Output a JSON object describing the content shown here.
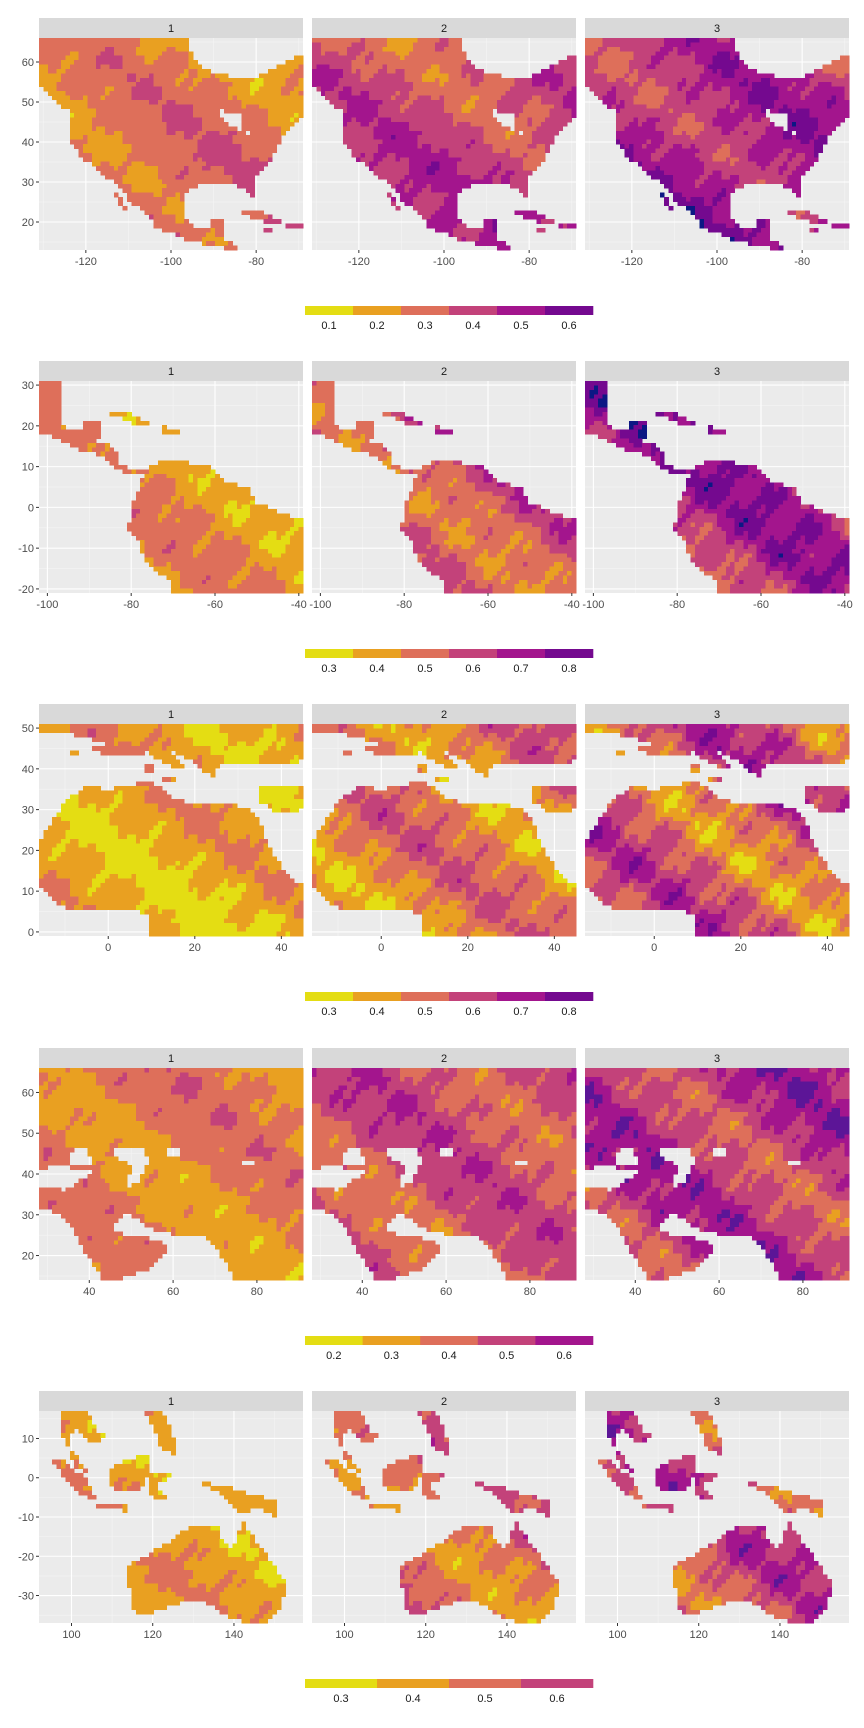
{
  "chart_data": [
    {
      "type": "heatmap",
      "region": "north-america",
      "panels": [
        "1",
        "2",
        "3"
      ],
      "xlim": [
        -131,
        -69
      ],
      "ylim": [
        13,
        66
      ],
      "x_ticks": [
        -120,
        -100,
        -80
      ],
      "y_ticks": [
        20,
        30,
        40,
        50,
        60
      ],
      "x_tick_labels": [
        "-120",
        "-100",
        "-80"
      ],
      "y_tick_labels": [
        "20",
        "30",
        "40",
        "50",
        "60"
      ],
      "legend": {
        "breaks": [
          0.05,
          0.15,
          0.25,
          0.35,
          0.45,
          0.55,
          0.65
        ],
        "labels": [
          "0.1",
          "0.2",
          "0.3",
          "0.4",
          "0.5",
          "0.6"
        ],
        "label_values": [
          0.1,
          0.2,
          0.3,
          0.4,
          0.5,
          0.6
        ],
        "colors": [
          "#e4dd13",
          "#e9a021",
          "#de6f5a",
          "#c3427a",
          "#a3158d",
          "#74098f",
          "#0c1784"
        ]
      },
      "panel_levels": [
        2.0,
        3.0,
        3.8
      ],
      "panel_spread": [
        1.0,
        1.1,
        1.3
      ]
    },
    {
      "type": "heatmap",
      "region": "south-america",
      "panels": [
        "1",
        "2",
        "3"
      ],
      "xlim": [
        -102,
        -39
      ],
      "ylim": [
        -21,
        31
      ],
      "x_ticks": [
        -100,
        -80,
        -60,
        -40
      ],
      "y_ticks": [
        -20,
        -10,
        0,
        10,
        20,
        30
      ],
      "x_tick_labels": [
        "-100",
        "-80",
        "-60",
        "-40"
      ],
      "y_tick_labels": [
        "-20",
        "-10",
        "0",
        "10",
        "20",
        "30"
      ],
      "legend": {
        "breaks": [
          0.25,
          0.35,
          0.45,
          0.55,
          0.65,
          0.75,
          0.85
        ],
        "labels": [
          "0.3",
          "0.4",
          "0.5",
          "0.6",
          "0.7",
          "0.8"
        ],
        "label_values": [
          0.3,
          0.4,
          0.5,
          0.6,
          0.7,
          0.8
        ],
        "colors": [
          "#e4dd13",
          "#e9a021",
          "#de6f5a",
          "#c3427a",
          "#a3158d",
          "#74098f",
          "#0c1784"
        ]
      },
      "panel_levels": [
        1.4,
        2.6,
        3.6
      ],
      "panel_spread": [
        1.0,
        1.3,
        1.6
      ]
    },
    {
      "type": "heatmap",
      "region": "africa-mediterranean",
      "panels": [
        "1",
        "2",
        "3"
      ],
      "xlim": [
        -16,
        45
      ],
      "ylim": [
        -1,
        51
      ],
      "x_ticks": [
        0,
        20,
        40
      ],
      "y_ticks": [
        0,
        10,
        20,
        30,
        40,
        50
      ],
      "x_tick_labels": [
        "0",
        "20",
        "40"
      ],
      "y_tick_labels": [
        "0",
        "10",
        "20",
        "30",
        "40",
        "50"
      ],
      "legend": {
        "breaks": [
          0.25,
          0.35,
          0.45,
          0.55,
          0.65,
          0.75,
          0.85
        ],
        "labels": [
          "0.3",
          "0.4",
          "0.5",
          "0.6",
          "0.7",
          "0.8"
        ],
        "label_values": [
          0.3,
          0.4,
          0.5,
          0.6,
          0.7,
          0.8
        ],
        "colors": [
          "#e4dd13",
          "#e9a021",
          "#de6f5a",
          "#c3427a",
          "#a3158d",
          "#74098f",
          "#0c1784"
        ]
      },
      "panel_levels": [
        0.9,
        1.7,
        2.4
      ],
      "panel_spread": [
        1.1,
        1.4,
        1.9
      ]
    },
    {
      "type": "heatmap",
      "region": "asia",
      "panels": [
        "1",
        "2",
        "3"
      ],
      "xlim": [
        28,
        91
      ],
      "ylim": [
        14,
        66
      ],
      "x_ticks": [
        40,
        60,
        80
      ],
      "y_ticks": [
        20,
        30,
        40,
        50,
        60
      ],
      "x_tick_labels": [
        "40",
        "60",
        "80"
      ],
      "y_tick_labels": [
        "20",
        "30",
        "40",
        "50",
        "60"
      ],
      "legend": {
        "breaks": [
          0.15,
          0.25,
          0.35,
          0.45,
          0.55,
          0.65
        ],
        "labels": [
          "0.2",
          "0.3",
          "0.4",
          "0.5",
          "0.6"
        ],
        "label_values": [
          0.2,
          0.3,
          0.4,
          0.5,
          0.6
        ],
        "colors": [
          "#e4dd13",
          "#e9a021",
          "#de6f5a",
          "#c3427a",
          "#a3158d",
          "#5c1597"
        ]
      },
      "panel_levels": [
        1.6,
        2.6,
        3.2
      ],
      "panel_spread": [
        0.9,
        1.1,
        1.4
      ]
    },
    {
      "type": "heatmap",
      "region": "australasia",
      "panels": [
        "1",
        "2",
        "3"
      ],
      "xlim": [
        92,
        157
      ],
      "ylim": [
        -37,
        17
      ],
      "x_ticks": [
        100,
        120,
        140
      ],
      "y_ticks": [
        -30,
        -20,
        -10,
        0,
        10
      ],
      "x_tick_labels": [
        "100",
        "120",
        "140"
      ],
      "y_tick_labels": [
        "-30",
        "-20",
        "-10",
        "0",
        "10"
      ],
      "legend": {
        "breaks": [
          0.25,
          0.35,
          0.45,
          0.55,
          0.65
        ],
        "labels": [
          "0.3",
          "0.4",
          "0.5",
          "0.6"
        ],
        "label_values": [
          0.3,
          0.4,
          0.5,
          0.6
        ],
        "colors": [
          "#e4dd13",
          "#e9a021",
          "#de6f5a",
          "#c3427a",
          "#a3158d",
          "#5c1597"
        ]
      },
      "panel_levels": [
        1.2,
        2.1,
        2.8
      ],
      "panel_spread": [
        0.9,
        1.2,
        1.5
      ]
    }
  ],
  "colors": {
    "panel_background": "#ebebeb",
    "grid_major": "#ffffff",
    "grid_minor": "#f5f5f5",
    "strip_background": "#d9d9d9",
    "land_mask": "#ffffff"
  }
}
